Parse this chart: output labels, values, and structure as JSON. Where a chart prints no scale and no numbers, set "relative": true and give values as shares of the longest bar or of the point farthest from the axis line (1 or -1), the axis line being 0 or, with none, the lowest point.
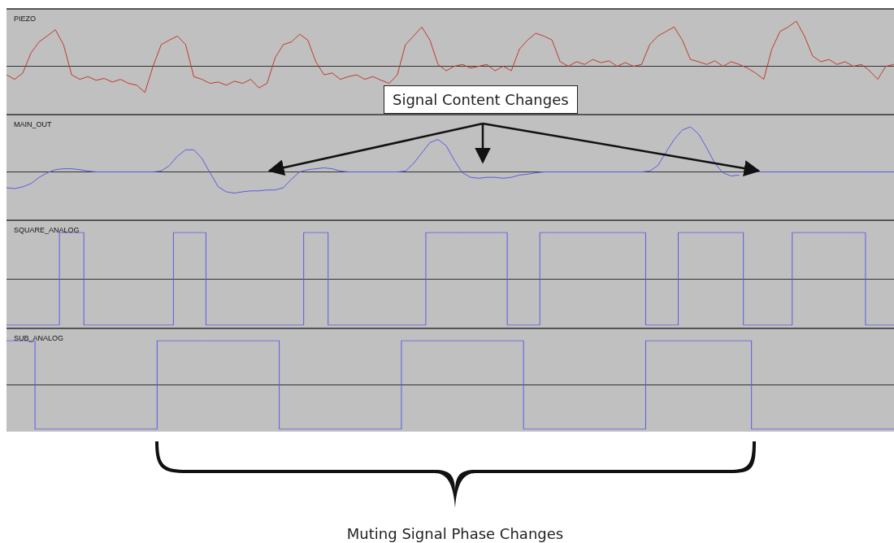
{
  "chart_data": [
    {
      "type": "line",
      "title": "PIEZO",
      "relative": true,
      "tick_labels": false,
      "marker": "none",
      "color": "#c0392b",
      "categories": [
        null,
        null,
        null,
        null,
        null,
        null,
        null,
        null,
        null,
        null,
        null,
        null,
        null,
        null,
        null,
        null,
        null,
        null,
        null,
        null,
        null,
        null,
        null,
        null,
        null,
        null,
        null,
        null,
        null,
        null,
        null,
        null,
        null,
        null,
        null,
        null,
        null,
        null,
        null,
        null,
        null,
        null,
        null,
        null,
        null,
        null,
        null,
        null,
        null,
        null,
        null,
        null,
        null,
        null,
        null,
        null,
        null,
        null,
        null,
        null,
        null,
        null,
        null,
        null,
        null,
        null,
        null,
        null,
        null,
        null,
        null,
        null,
        null,
        null,
        null,
        null,
        null,
        null,
        null,
        null,
        null,
        null,
        null,
        null,
        null,
        null,
        null,
        null,
        null,
        null,
        null,
        null,
        null,
        null,
        null,
        null,
        null,
        null,
        null,
        null,
        null,
        null,
        null,
        null,
        null,
        null,
        null,
        null,
        null,
        null
      ],
      "values": [
        -0.19,
        -0.29,
        -0.15,
        0.29,
        0.54,
        0.67,
        0.81,
        0.48,
        -0.19,
        -0.29,
        -0.23,
        -0.31,
        -0.27,
        -0.35,
        -0.29,
        -0.38,
        -0.42,
        -0.58,
        0,
        0.48,
        0.58,
        0.67,
        0.48,
        -0.23,
        -0.29,
        -0.38,
        -0.35,
        -0.42,
        -0.33,
        -0.38,
        -0.29,
        -0.48,
        -0.38,
        0.19,
        0.48,
        0.54,
        0.71,
        0.58,
        0.1,
        -0.19,
        -0.15,
        -0.29,
        -0.23,
        -0.19,
        -0.29,
        -0.23,
        -0.31,
        -0.38,
        -0.19,
        0.48,
        0.67,
        0.87,
        0.58,
        0.04,
        -0.1,
        0,
        0.04,
        -0.04,
        0,
        0.04,
        -0.1,
        0,
        -0.1,
        0.38,
        0.58,
        0.73,
        0.67,
        0.58,
        0.1,
        0,
        0.1,
        0.04,
        0.15,
        0.08,
        0.12,
        0,
        0.08,
        0,
        0.04,
        0.48,
        0.67,
        0.77,
        0.87,
        0.58,
        0.15,
        0.1,
        0.04,
        0.12,
        0,
        0.1,
        0.04,
        -0.04,
        -0.15,
        -0.29,
        0.38,
        0.77,
        0.87,
        1,
        0.67,
        0.23,
        0.1,
        0.15,
        0.04,
        0.1,
        0,
        0.04,
        -0.1,
        -0.29,
        0,
        0.04
      ]
    },
    {
      "type": "line",
      "title": "MAIN_OUT",
      "relative": true,
      "tick_labels": false,
      "marker": "none",
      "color": "#5a5ae6",
      "annotations": [
        "Signal Content Changes"
      ],
      "categories": [
        null,
        null,
        null,
        null,
        null,
        null,
        null,
        null,
        null,
        null,
        null,
        null,
        null,
        null,
        null,
        null,
        null,
        null,
        null,
        null,
        null,
        null,
        null,
        null,
        null,
        null,
        null,
        null,
        null,
        null,
        null,
        null,
        null,
        null,
        null,
        null,
        null,
        null,
        null,
        null,
        null,
        null,
        null,
        null,
        null,
        null,
        null,
        null,
        null,
        null,
        null,
        null,
        null,
        null,
        null,
        null,
        null,
        null,
        null,
        null,
        null,
        null,
        null,
        null,
        null,
        null,
        null,
        null,
        null,
        null,
        null,
        null,
        null,
        null,
        null,
        null,
        null,
        null,
        null,
        null,
        null,
        null,
        null,
        null,
        null,
        null,
        null,
        null,
        null,
        null,
        null,
        null,
        null,
        null,
        null,
        null,
        null,
        null,
        null,
        null,
        null,
        null,
        null,
        null,
        null,
        null,
        null,
        null,
        null,
        null
      ],
      "values": [
        -0.35,
        -0.37,
        -0.33,
        -0.26,
        -0.12,
        -0.02,
        0.05,
        0.07,
        0.07,
        0.05,
        0.02,
        0,
        0,
        0,
        0,
        0,
        0,
        0,
        0,
        0.02,
        0.14,
        0.35,
        0.49,
        0.49,
        0.3,
        -0.02,
        -0.33,
        -0.44,
        -0.47,
        -0.44,
        -0.42,
        -0.42,
        -0.4,
        -0.4,
        -0.35,
        -0.16,
        0,
        0.05,
        0.07,
        0.09,
        0.07,
        0.02,
        0,
        0,
        0,
        0,
        0,
        0,
        0,
        0.02,
        0.19,
        0.42,
        0.65,
        0.72,
        0.58,
        0.26,
        -0.02,
        -0.12,
        -0.14,
        -0.12,
        -0.12,
        -0.14,
        -0.12,
        -0.07,
        -0.05,
        -0.02,
        0,
        0,
        0,
        0,
        0,
        0,
        0,
        0,
        0,
        0,
        0,
        0,
        0,
        0.02,
        0.14,
        0.44,
        0.72,
        0.93,
        1,
        0.84,
        0.53,
        0.19,
        -0.02,
        -0.09,
        -0.07,
        null,
        0,
        0,
        0,
        0,
        0,
        0,
        0,
        0,
        0,
        0,
        0,
        0,
        0,
        0,
        0,
        0,
        0,
        0
      ]
    },
    {
      "type": "step",
      "title": "SQUARE_ANALOG",
      "relative": true,
      "tick_labels": false,
      "marker": "none",
      "color": "#5a5ae6",
      "categories": [
        null,
        null,
        null,
        null,
        null,
        null,
        null,
        null,
        null,
        null,
        null,
        null,
        null,
        null,
        null,
        null,
        null,
        null,
        null,
        null,
        null,
        null,
        null,
        null,
        null,
        null,
        null,
        null,
        null,
        null,
        null,
        null,
        null,
        null,
        null,
        null,
        null,
        null,
        null,
        null,
        null,
        null,
        null,
        null,
        null,
        null,
        null,
        null,
        null,
        null,
        null,
        null,
        null,
        null,
        null,
        null,
        null,
        null,
        null,
        null,
        null,
        null,
        null,
        null,
        null,
        null,
        null,
        null,
        null,
        null,
        null,
        null,
        null,
        null,
        null,
        null,
        null,
        null,
        null,
        null,
        null,
        null,
        null,
        null,
        null,
        null,
        null,
        null,
        null,
        null,
        null,
        null,
        null,
        null,
        null,
        null,
        null,
        null,
        null,
        null,
        null,
        null,
        null,
        null,
        null,
        null,
        null,
        null,
        null,
        null
      ],
      "values": [
        -1,
        -1,
        -1,
        -1,
        -1,
        -1,
        -1,
        1,
        1,
        1,
        -1,
        -1,
        -1,
        -1,
        -1,
        -1,
        -1,
        -1,
        -1,
        -1,
        -1,
        1,
        1,
        1,
        1,
        -1,
        -1,
        -1,
        -1,
        -1,
        -1,
        -1,
        -1,
        -1,
        -1,
        -1,
        -1,
        1,
        1,
        1,
        -1,
        -1,
        -1,
        -1,
        -1,
        -1,
        -1,
        -1,
        -1,
        -1,
        -1,
        -1,
        1,
        1,
        1,
        1,
        1,
        1,
        1,
        1,
        1,
        1,
        -1,
        -1,
        -1,
        -1,
        1,
        1,
        1,
        1,
        1,
        1,
        1,
        1,
        1,
        1,
        1,
        1,
        1,
        -1,
        -1,
        -1,
        -1,
        1,
        1,
        1,
        1,
        1,
        1,
        1,
        1,
        -1,
        -1,
        -1,
        -1,
        -1,
        -1,
        1,
        1,
        1,
        1,
        1,
        1,
        1,
        1,
        1,
        -1,
        -1,
        -1,
        -1
      ]
    },
    {
      "type": "step",
      "title": "SUB_ANALOG",
      "relative": true,
      "tick_labels": false,
      "marker": "none",
      "color": "#5a5ae6",
      "annotations": [
        "Muting Signal Phase Changes"
      ],
      "categories": [
        null,
        null,
        null,
        null,
        null,
        null,
        null,
        null,
        null,
        null,
        null,
        null,
        null,
        null,
        null,
        null,
        null,
        null,
        null,
        null,
        null,
        null,
        null,
        null,
        null,
        null,
        null,
        null,
        null,
        null,
        null,
        null,
        null,
        null,
        null,
        null,
        null,
        null,
        null,
        null,
        null,
        null,
        null,
        null,
        null,
        null,
        null,
        null,
        null,
        null,
        null,
        null,
        null,
        null,
        null,
        null,
        null,
        null,
        null,
        null,
        null,
        null,
        null,
        null,
        null,
        null,
        null,
        null,
        null,
        null,
        null,
        null,
        null,
        null,
        null,
        null,
        null,
        null,
        null,
        null,
        null,
        null,
        null,
        null,
        null,
        null,
        null,
        null,
        null,
        null,
        null,
        null,
        null,
        null,
        null,
        null,
        null,
        null,
        null,
        null,
        null,
        null,
        null,
        null,
        null,
        null,
        null,
        null,
        null,
        null
      ],
      "values": [
        1,
        1,
        1,
        1,
        -1,
        -1,
        -1,
        -1,
        -1,
        -1,
        -1,
        -1,
        -1,
        -1,
        -1,
        -1,
        -1,
        -1,
        -1,
        1,
        1,
        1,
        1,
        1,
        1,
        1,
        1,
        1,
        1,
        1,
        1,
        1,
        1,
        1,
        -1,
        -1,
        -1,
        -1,
        -1,
        -1,
        -1,
        -1,
        -1,
        -1,
        -1,
        -1,
        -1,
        -1,
        -1,
        1,
        1,
        1,
        1,
        1,
        1,
        1,
        1,
        1,
        1,
        1,
        1,
        1,
        1,
        1,
        -1,
        -1,
        -1,
        -1,
        -1,
        -1,
        -1,
        -1,
        -1,
        -1,
        -1,
        -1,
        -1,
        -1,
        -1,
        1,
        1,
        1,
        1,
        1,
        1,
        1,
        1,
        1,
        1,
        1,
        1,
        1,
        -1,
        -1,
        -1,
        -1,
        -1,
        -1,
        -1,
        -1,
        -1,
        -1,
        -1,
        -1,
        -1,
        -1,
        -1,
        -1,
        -1,
        -1
      ]
    }
  ]
}
